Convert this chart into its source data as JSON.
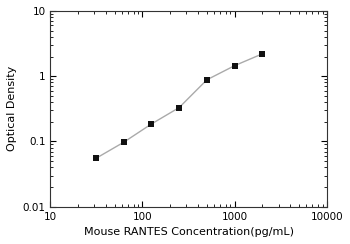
{
  "x": [
    31.25,
    62.5,
    125,
    250,
    500,
    1000,
    2000
  ],
  "y": [
    0.055,
    0.097,
    0.185,
    0.33,
    0.88,
    1.45,
    2.2
  ],
  "xlabel": "Mouse RANTES Concentration(pg/mL)",
  "ylabel": "Optical Density",
  "xlim": [
    10,
    10000
  ],
  "ylim": [
    0.01,
    10
  ],
  "line_color": "#aaaaaa",
  "marker_color": "#111111",
  "marker": "s",
  "marker_size": 4,
  "line_width": 1.0,
  "background_color": "#ffffff",
  "xlabel_fontsize": 8,
  "ylabel_fontsize": 8,
  "tick_fontsize": 7.5,
  "ytick_labels": [
    "0.01",
    "0.1",
    "1",
    "10"
  ],
  "ytick_values": [
    0.01,
    0.1,
    1,
    10
  ],
  "xtick_labels": [
    "10",
    "100",
    "1000",
    "10000"
  ],
  "xtick_values": [
    10,
    100,
    1000,
    10000
  ]
}
